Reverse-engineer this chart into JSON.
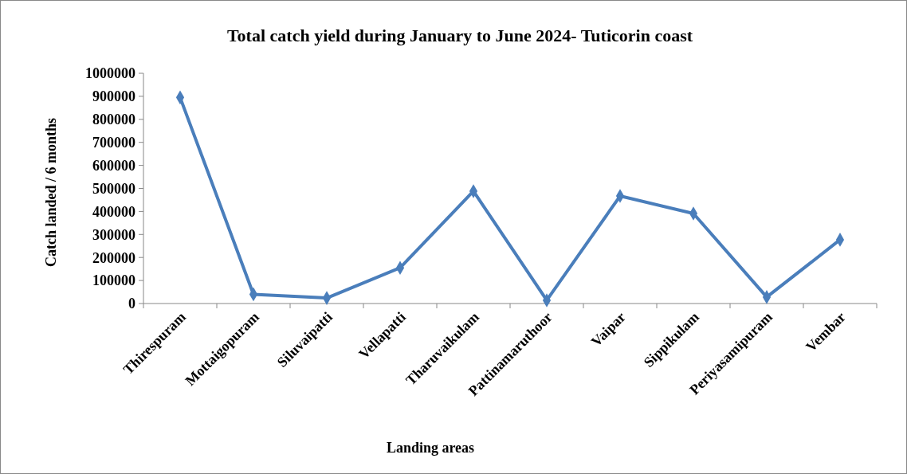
{
  "chart_data": {
    "type": "line",
    "title": "Total catch yield during January to June 2024- Tuticorin coast",
    "xlabel": "Landing areas",
    "ylabel": "Catch landed / 6 months",
    "categories": [
      "Thirespuram",
      "Mottaigopuram",
      "Siluvaipatti",
      "Vellapatti",
      "Tharuvaikulam",
      "Pattinamaruthoor",
      "Vaipar",
      "Sippikulam",
      "Periyasamipuram",
      "Vembar"
    ],
    "series": [
      {
        "color": "#4a7ebb",
        "values": [
          895000,
          40000,
          24000,
          155000,
          488000,
          14000,
          467000,
          391000,
          28000,
          277000
        ]
      }
    ],
    "ylim": [
      0,
      1000000
    ],
    "yticks": [
      0,
      100000,
      200000,
      300000,
      400000,
      500000,
      600000,
      700000,
      800000,
      900000,
      1000000
    ],
    "marker": "diamond",
    "line_style": "solid"
  }
}
